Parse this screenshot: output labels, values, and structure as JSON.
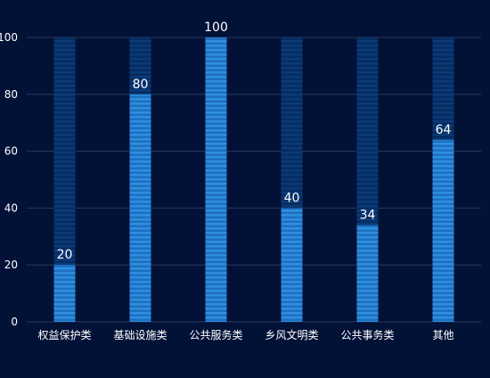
{
  "chart_data": {
    "type": "bar",
    "categories": [
      "权益保护类",
      "基础设施类",
      "公共服务类",
      "乡风文明类",
      "公共事务类",
      "其他"
    ],
    "values": [
      20,
      80,
      100,
      40,
      34,
      64
    ],
    "ylim": [
      0,
      100
    ],
    "yticks": [
      0,
      20,
      40,
      60,
      80,
      100
    ],
    "grid": true,
    "legend": "none",
    "data_labels": true,
    "colors": {
      "background": "#021237",
      "bar_fill": "#2E8FE0",
      "bar_stripe": "#1E6FC0",
      "track_fill": "#0A3A78",
      "track_stripe": "#062C60",
      "gridline": "#26385E",
      "axis_text": "#FFFFFF",
      "label_text": "#FFFFFF"
    }
  }
}
